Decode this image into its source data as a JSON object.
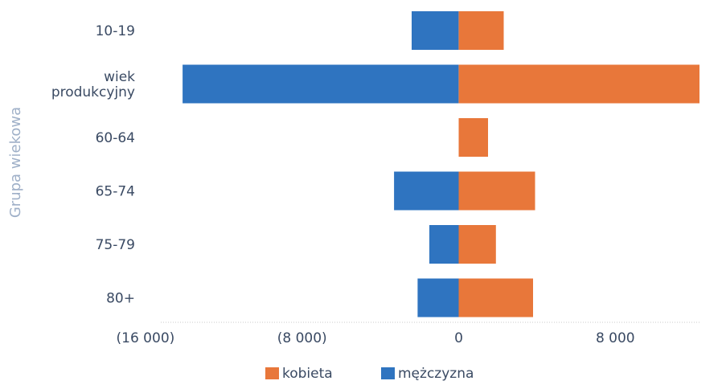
{
  "chart_data": {
    "type": "bar",
    "orientation": "horizontal",
    "diverging": true,
    "ylabel": "Grupa wiekowa",
    "categories": [
      "10-19",
      "wiek produkcyjny",
      "60-64",
      "65-74",
      "75-79",
      "80+"
    ],
    "category_lines": [
      [
        "10-19"
      ],
      [
        "wiek",
        "produkcyjny"
      ],
      [
        "60-64"
      ],
      [
        "65-74"
      ],
      [
        "75-79"
      ],
      [
        "80+"
      ]
    ],
    "series": [
      {
        "name": "kobieta",
        "color": "#e8773a",
        "values": [
          2300,
          12300,
          1500,
          3900,
          1900,
          3800
        ]
      },
      {
        "name": "mężczyzna",
        "color": "#2f74c0",
        "values": [
          -2400,
          -14100,
          0,
          -3300,
          -1500,
          -2100
        ]
      }
    ],
    "xlim": [
      -18500,
      12300
    ],
    "x_ticks": [
      -16000,
      -8000,
      0,
      8000
    ],
    "x_tick_labels": [
      "(16 000)",
      "(8 000)",
      "0",
      "8 000"
    ],
    "grid": false,
    "legend": {
      "position": "bottom",
      "items": [
        "kobieta",
        "mężczyzna"
      ]
    }
  }
}
